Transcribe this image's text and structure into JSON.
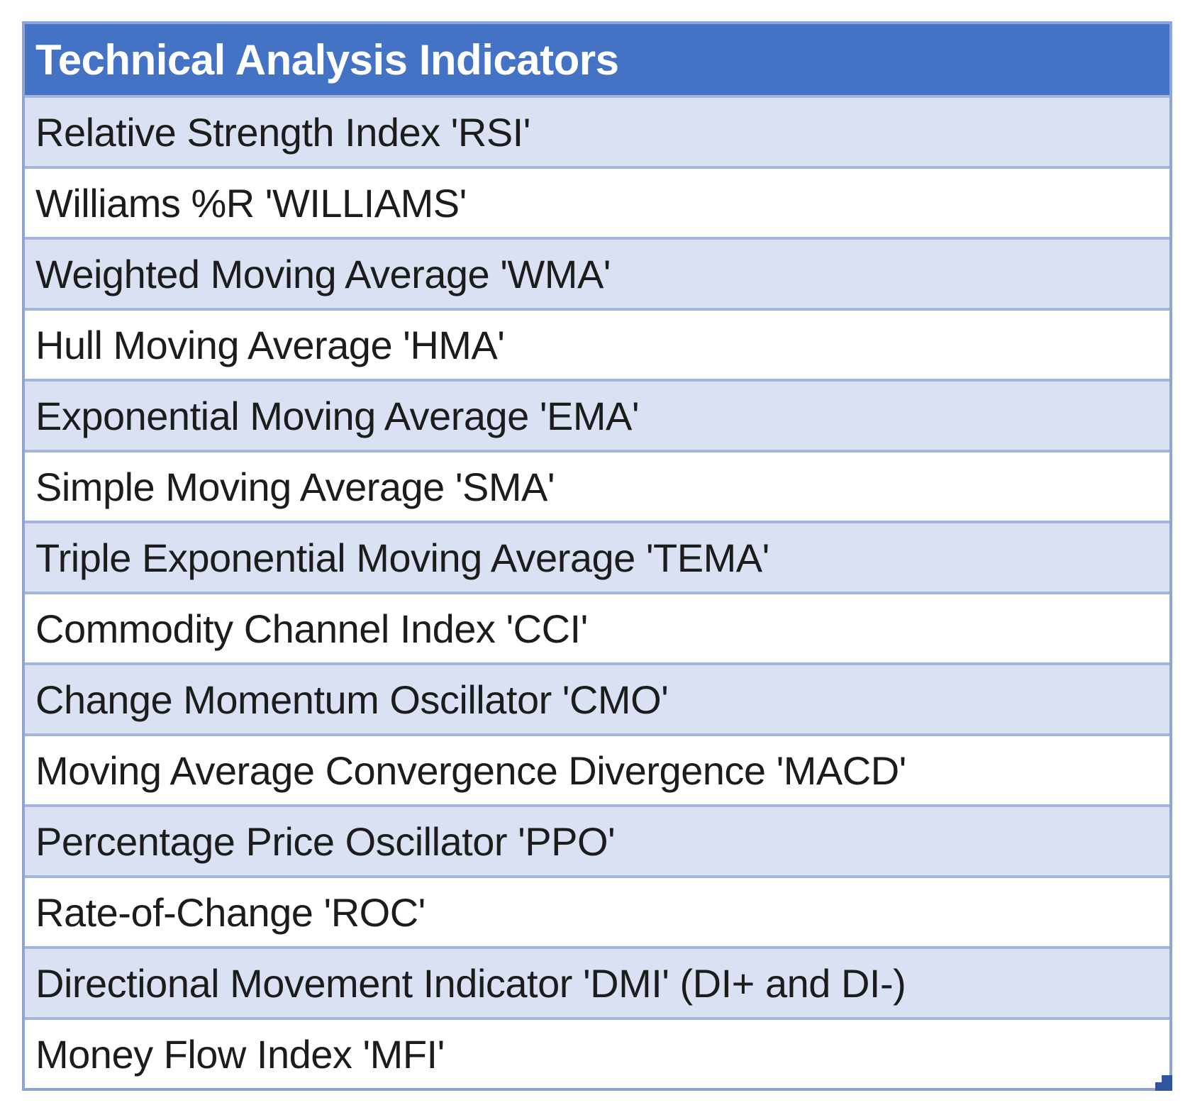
{
  "table": {
    "header": "Technical Analysis Indicators",
    "rows": [
      "Relative Strength Index 'RSI'",
      "Williams %R 'WILLIAMS'",
      "Weighted Moving Average 'WMA'",
      "Hull Moving Average 'HMA'",
      "Exponential Moving Average 'EMA'",
      "Simple Moving Average 'SMA'",
      "Triple Exponential Moving Average 'TEMA'",
      "Commodity Channel Index 'CCI'",
      "Change Momentum Oscillator 'CMO'",
      "Moving Average Convergence Divergence 'MACD'",
      "Percentage Price Oscillator 'PPO'",
      "Rate-of-Change 'ROC'",
      "Directional Movement Indicator 'DMI' (DI+ and DI-)",
      "Money Flow Index 'MFI'"
    ]
  },
  "colors": {
    "header_bg": "#4472C4",
    "header_text": "#FFFFFF",
    "band_bg": "#D9E1F2",
    "plain_bg": "#FFFFFF",
    "grid_line": "#A3B5DF",
    "outer_border": "#8EA5D6",
    "text_color": "#1C1C1C",
    "handle_color": "#30549E"
  }
}
